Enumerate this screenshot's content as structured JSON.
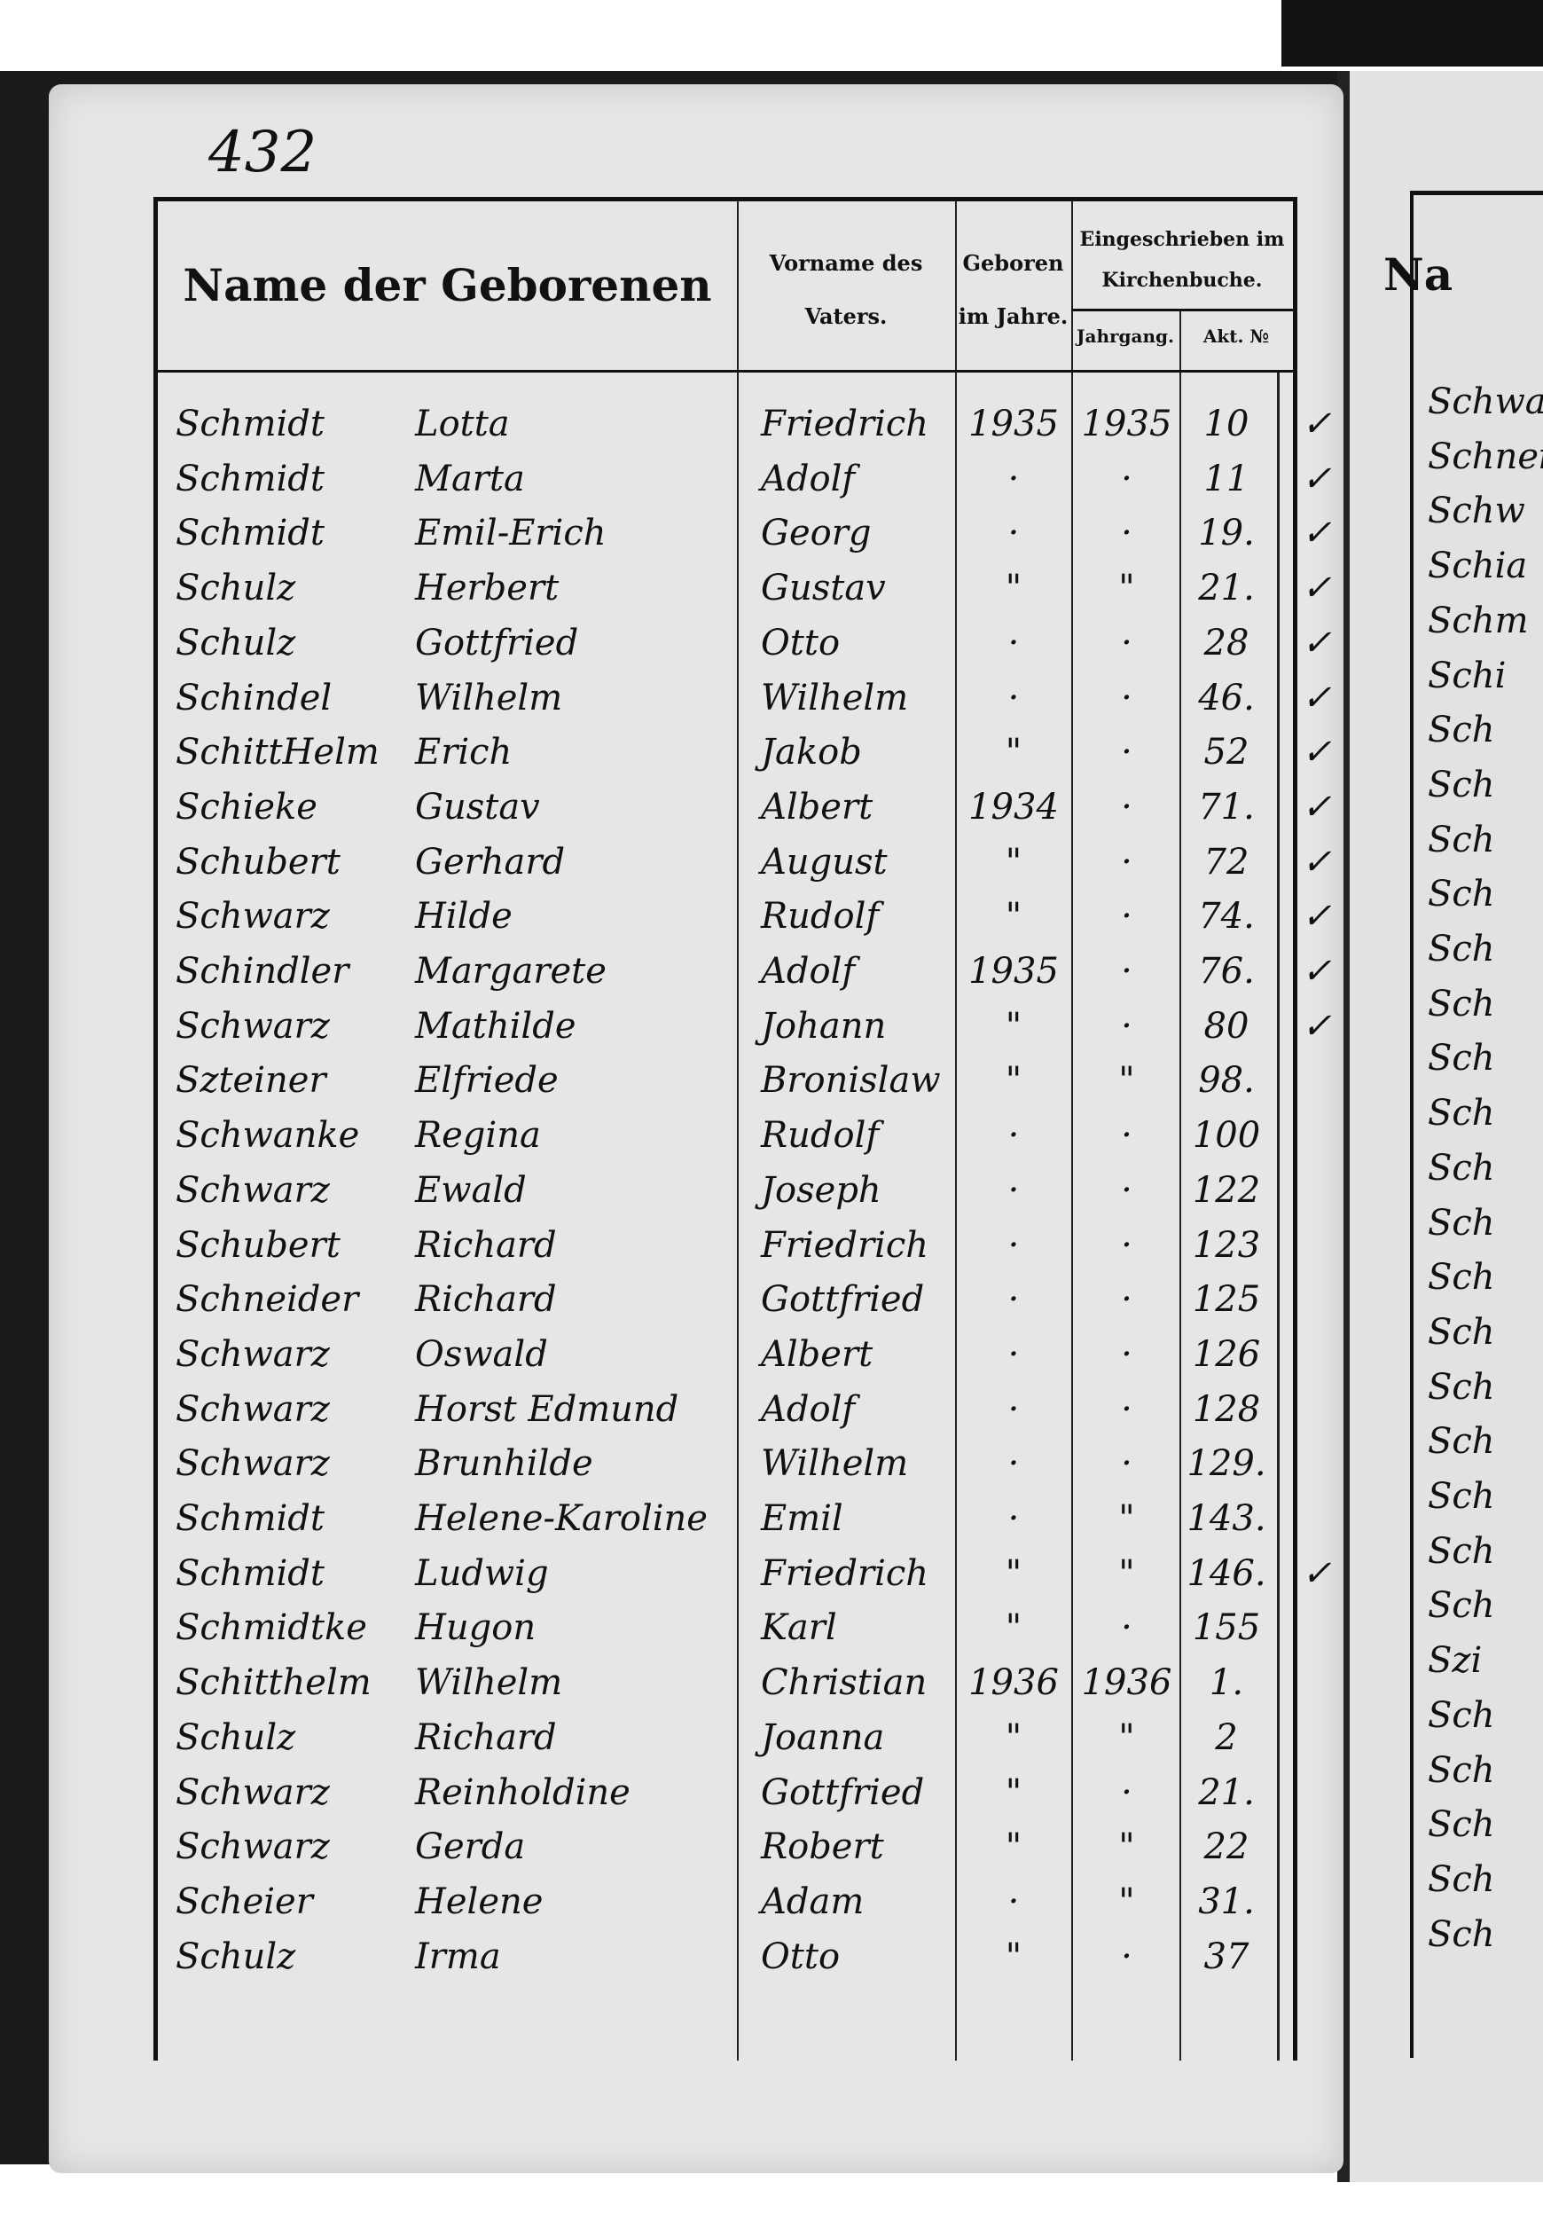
{
  "page_number": "432",
  "header": {
    "name": "Name der Geborenen",
    "father_given_name": [
      "Vorname des",
      "Vaters."
    ],
    "born_in_year": [
      "Geboren",
      "im Jahre."
    ],
    "registered": [
      "Eingeschrieben im",
      "Kirchenbuche."
    ],
    "volume": "Jahrgang.",
    "act_no": "Akt. №"
  },
  "rows": [
    {
      "surname": "Schmidt",
      "given": "Lotta",
      "father": "Friedrich",
      "born": "1935",
      "volume": "1935",
      "act": "10",
      "check": "✓"
    },
    {
      "surname": "Schmidt",
      "given": "Marta",
      "father": "Adolf",
      "born": "·",
      "volume": "·",
      "act": "11",
      "check": "✓"
    },
    {
      "surname": "Schmidt",
      "given": "Emil-Erich",
      "father": "Georg",
      "born": "·",
      "volume": "·",
      "act": "19.",
      "check": "✓"
    },
    {
      "surname": "Schulz",
      "given": "Herbert",
      "father": "Gustav",
      "born": "\"",
      "volume": "\"",
      "act": "21.",
      "check": "✓"
    },
    {
      "surname": "Schulz",
      "given": "Gottfried",
      "father": "Otto",
      "born": "·",
      "volume": "·",
      "act": "28",
      "check": "✓"
    },
    {
      "surname": "Schindel",
      "given": "Wilhelm",
      "father": "Wilhelm",
      "born": "·",
      "volume": "·",
      "act": "46.",
      "check": "✓"
    },
    {
      "surname": "SchittHelm",
      "given": "Erich",
      "father": "Jakob",
      "born": "\"",
      "volume": "·",
      "act": "52",
      "check": "✓"
    },
    {
      "surname": "Schieke",
      "given": "Gustav",
      "father": "Albert",
      "born": "1934",
      "volume": "·",
      "act": "71.",
      "check": "✓"
    },
    {
      "surname": "Schubert",
      "given": "Gerhard",
      "father": "August",
      "born": "\"",
      "volume": "·",
      "act": "72",
      "check": "✓"
    },
    {
      "surname": "Schwarz",
      "given": "Hilde",
      "father": "Rudolf",
      "born": "\"",
      "volume": "·",
      "act": "74.",
      "check": "✓"
    },
    {
      "surname": "Schindler",
      "given": "Margarete",
      "father": "Adolf",
      "born": "1935",
      "volume": "·",
      "act": "76.",
      "check": "✓"
    },
    {
      "surname": "Schwarz",
      "given": "Mathilde",
      "father": "Johann",
      "born": "\"",
      "volume": "·",
      "act": "80",
      "check": "✓"
    },
    {
      "surname": "Szteiner",
      "given": "Elfriede",
      "father": "Bronislaw",
      "born": "\"",
      "volume": "\"",
      "act": "98.",
      "check": ""
    },
    {
      "surname": "Schwanke",
      "given": "Regina",
      "father": "Rudolf",
      "born": "·",
      "volume": "·",
      "act": "100",
      "check": ""
    },
    {
      "surname": "Schwarz",
      "given": "Ewald",
      "father": "Joseph",
      "born": "·",
      "volume": "·",
      "act": "122",
      "check": ""
    },
    {
      "surname": "Schubert",
      "given": "Richard",
      "father": "Friedrich",
      "born": "·",
      "volume": "·",
      "act": "123",
      "check": ""
    },
    {
      "surname": "Schneider",
      "given": "Richard",
      "father": "Gottfried",
      "born": "·",
      "volume": "·",
      "act": "125",
      "check": ""
    },
    {
      "surname": "Schwarz",
      "given": "Oswald",
      "father": "Albert",
      "born": "·",
      "volume": "·",
      "act": "126",
      "check": ""
    },
    {
      "surname": "Schwarz",
      "given": "Horst Edmund",
      "father": "Adolf",
      "born": "·",
      "volume": "·",
      "act": "128",
      "check": ""
    },
    {
      "surname": "Schwarz",
      "given": "Brunhilde",
      "father": "Wilhelm",
      "born": "·",
      "volume": "·",
      "act": "129.",
      "check": ""
    },
    {
      "surname": "Schmidt",
      "given": "Helene-Karoline",
      "father": "Emil",
      "born": "·",
      "volume": "\"",
      "act": "143.",
      "check": ""
    },
    {
      "surname": "Schmidt",
      "given": "Ludwig",
      "father": "Friedrich",
      "born": "\"",
      "volume": "\"",
      "act": "146.",
      "check": "✓"
    },
    {
      "surname": "Schmidtke",
      "given": "Hugon",
      "father": "Karl",
      "born": "\"",
      "volume": "·",
      "act": "155",
      "check": ""
    },
    {
      "surname": "Schitthelm",
      "given": "Wilhelm",
      "father": "Christian",
      "born": "1936",
      "volume": "1936",
      "act": "1.",
      "check": ""
    },
    {
      "surname": "Schulz",
      "given": "Richard",
      "father": "Joanna",
      "born": "\"",
      "volume": "\"",
      "act": "2",
      "check": ""
    },
    {
      "surname": "Schwarz",
      "given": "Reinholdine",
      "father": "Gottfried",
      "born": "\"",
      "volume": "·",
      "act": "21.",
      "check": ""
    },
    {
      "surname": "Schwarz",
      "given": "Gerda",
      "father": "Robert",
      "born": "\"",
      "volume": "\"",
      "act": "22",
      "check": ""
    },
    {
      "surname": "Scheier",
      "given": "Helene",
      "father": "Adam",
      "born": "·",
      "volume": "\"",
      "act": "31.",
      "check": ""
    },
    {
      "surname": "Schulz",
      "given": "Irma",
      "father": "Otto",
      "born": "\"",
      "volume": "·",
      "act": "37",
      "check": ""
    }
  ],
  "next_page": {
    "header_fragment": "Na",
    "surname_fragments": [
      "Schwa",
      "Schnei",
      "Schw",
      "Schia",
      "Schm",
      "Schi",
      "Sch",
      "Sch",
      "Sch",
      "Sch",
      "Sch",
      "Sch",
      "Sch",
      "Sch",
      "Sch",
      "Sch",
      "Sch",
      "Sch",
      "Sch",
      "Sch",
      "Sch",
      "Sch",
      "Sch",
      "Szi",
      "Sch",
      "Sch",
      "Sch",
      "Sch",
      "Sch"
    ]
  }
}
